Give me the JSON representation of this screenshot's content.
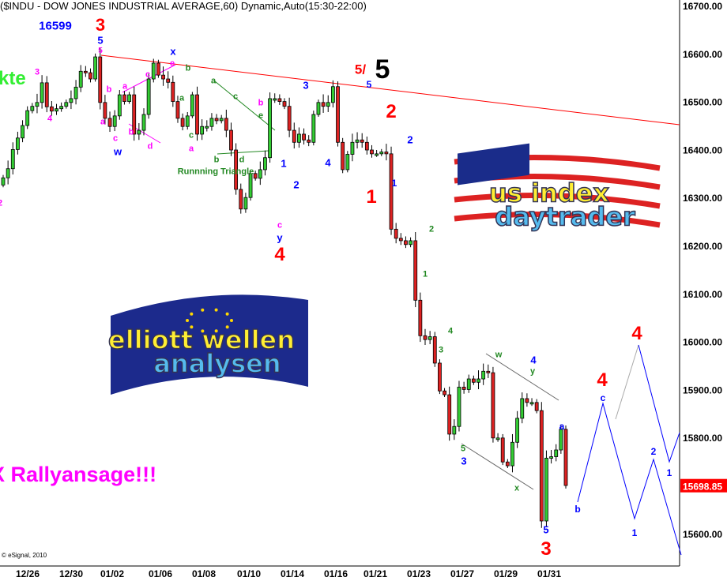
{
  "title": "($INDU - DOW JONES INDUSTRIAL AVERAGE,60) Dynamic,Auto(15:30-22:00)",
  "copyright": "© eSignal, 2010",
  "headline_left": "kte",
  "rally_text": "X Rallyansage!!!",
  "logos": {
    "us": [
      "us index",
      "daytrader"
    ],
    "eu": [
      "elliott wellen",
      "analysen"
    ]
  },
  "colors": {
    "up": "#33cc33",
    "down": "#dd2222",
    "trendline": "#ff0000",
    "projection": "#0000ff",
    "last_price_bg": "#ff0000"
  },
  "chart_data": {
    "type": "candlestick",
    "title": "($INDU - DOW JONES INDUSTRIAL AVERAGE,60) Dynamic,Auto(15:30-22:00)",
    "ylim": [
      15540,
      16720
    ],
    "y_ticks": [
      "16700.00",
      "16600.00",
      "16500.00",
      "16400.00",
      "16300.00",
      "16200.00",
      "16100.00",
      "16000.00",
      "15900.00",
      "15800.00",
      "15600.00"
    ],
    "y_tick_values": [
      16700,
      16600,
      16500,
      16400,
      16300,
      16200,
      16100,
      16000,
      15900,
      15800,
      15600
    ],
    "x_ticks": [
      "12/26",
      "12/30",
      "01/02",
      "01/06",
      "01/08",
      "01/10",
      "01/14",
      "01/16",
      "01/21",
      "01/23",
      "01/27",
      "01/29",
      "01/31"
    ],
    "last_price": "15698.85",
    "high_label": "16599",
    "closes": [
      16341,
      16360,
      16400,
      16424,
      16450,
      16481,
      16490,
      16498,
      16539,
      16489,
      16480,
      16485,
      16490,
      16498,
      16506,
      16530,
      16563,
      16560,
      16547,
      16593,
      16498,
      16465,
      16448,
      16470,
      16514,
      16500,
      16514,
      16432,
      16440,
      16473,
      16547,
      16580,
      16555,
      16547,
      16540,
      16500,
      16465,
      16448,
      16470,
      16514,
      16432,
      16448,
      16448,
      16465,
      16460,
      16465,
      16440,
      16399,
      16317,
      16276,
      16300,
      16350,
      16340,
      16358,
      16383,
      16506,
      16506,
      16500,
      16490,
      16440,
      16415,
      16432,
      16420,
      16415,
      16473,
      16498,
      16490,
      16498,
      16531,
      16415,
      16358,
      16390,
      16415,
      16420,
      16415,
      16399,
      16391,
      16391,
      16395,
      16391,
      16234,
      16215,
      16210,
      16202,
      16210,
      16086,
      16012,
      16004,
      16010,
      15955,
      15897,
      15889,
      15807,
      15823,
      15905,
      15900,
      15922,
      15915,
      15922,
      15938,
      15935,
      15799,
      15799,
      15749,
      15741,
      15790,
      15840,
      15881,
      15873,
      15873,
      15856,
      15626,
      15757,
      15760,
      15774,
      15817,
      15700
    ],
    "annotations": [
      {
        "text": "16599",
        "color": "#0000ff"
      },
      {
        "text": "3",
        "color": "#ff0000"
      },
      {
        "text": "5",
        "color": "#0000ff"
      },
      {
        "text": "5",
        "color": "#ff00ff"
      },
      {
        "text": "3",
        "color": "#ff00ff"
      },
      {
        "text": "4",
        "color": "#ff00ff"
      },
      {
        "text": "2",
        "color": "#ff00ff"
      },
      {
        "text": "b",
        "color": "#ff00ff"
      },
      {
        "text": "a",
        "color": "#ff00ff"
      },
      {
        "text": "c",
        "color": "#ff00ff"
      },
      {
        "text": "w",
        "color": "#0000ff"
      },
      {
        "text": "a",
        "color": "#ff00ff"
      },
      {
        "text": "c",
        "color": "#ff00ff"
      },
      {
        "text": "b",
        "color": "#ff00ff"
      },
      {
        "text": "d",
        "color": "#ff00ff"
      },
      {
        "text": "x",
        "color": "#0000ff"
      },
      {
        "text": "e",
        "color": "#ff00ff"
      },
      {
        "text": "b",
        "color": "#228822"
      },
      {
        "text": "a",
        "color": "#228822"
      },
      {
        "text": "c",
        "color": "#228822"
      },
      {
        "text": "a",
        "color": "#ff00ff"
      },
      {
        "text": "a",
        "color": "#228822"
      },
      {
        "text": "c",
        "color": "#228822"
      },
      {
        "text": "b",
        "color": "#ff00ff"
      },
      {
        "text": "e",
        "color": "#228822"
      },
      {
        "text": "b",
        "color": "#228822"
      },
      {
        "text": "d",
        "color": "#228822"
      },
      {
        "text": "Runnning Triangle",
        "color": "#228822"
      },
      {
        "text": "c",
        "color": "#ff00ff"
      },
      {
        "text": "y",
        "color": "#0000ff"
      },
      {
        "text": "4",
        "color": "#ff0000"
      },
      {
        "text": "1",
        "color": "#0000ff"
      },
      {
        "text": "2",
        "color": "#0000ff"
      },
      {
        "text": "3",
        "color": "#0000ff"
      },
      {
        "text": "4",
        "color": "#0000ff"
      },
      {
        "text": "5/",
        "color": "#ff0000"
      },
      {
        "text": "5",
        "color": "#000000"
      },
      {
        "text": "5",
        "color": "#0000ff"
      },
      {
        "text": "2",
        "color": "#ff0000"
      },
      {
        "text": "1",
        "color": "#ff0000"
      },
      {
        "text": "1",
        "color": "#0000ff"
      },
      {
        "text": "2",
        "color": "#0000ff"
      },
      {
        "text": "2",
        "color": "#228822"
      },
      {
        "text": "1",
        "color": "#228822"
      },
      {
        "text": "4",
        "color": "#228822"
      },
      {
        "text": "3",
        "color": "#228822"
      },
      {
        "text": "w",
        "color": "#228822"
      },
      {
        "text": "4",
        "color": "#0000ff"
      },
      {
        "text": "y",
        "color": "#228822"
      },
      {
        "text": "5",
        "color": "#228822"
      },
      {
        "text": "3",
        "color": "#0000ff"
      },
      {
        "text": "x",
        "color": "#228822"
      },
      {
        "text": "a",
        "color": "#0000ff"
      },
      {
        "text": "b",
        "color": "#0000ff"
      },
      {
        "text": "5",
        "color": "#0000ff"
      },
      {
        "text": "3",
        "color": "#ff0000"
      },
      {
        "text": "4",
        "color": "#ff0000"
      },
      {
        "text": "c",
        "color": "#0000ff"
      },
      {
        "text": "4",
        "color": "#ff0000"
      },
      {
        "text": "2",
        "color": "#0000ff"
      },
      {
        "text": "1",
        "color": "#0000ff"
      },
      {
        "text": "1",
        "color": "#0000ff"
      }
    ]
  }
}
